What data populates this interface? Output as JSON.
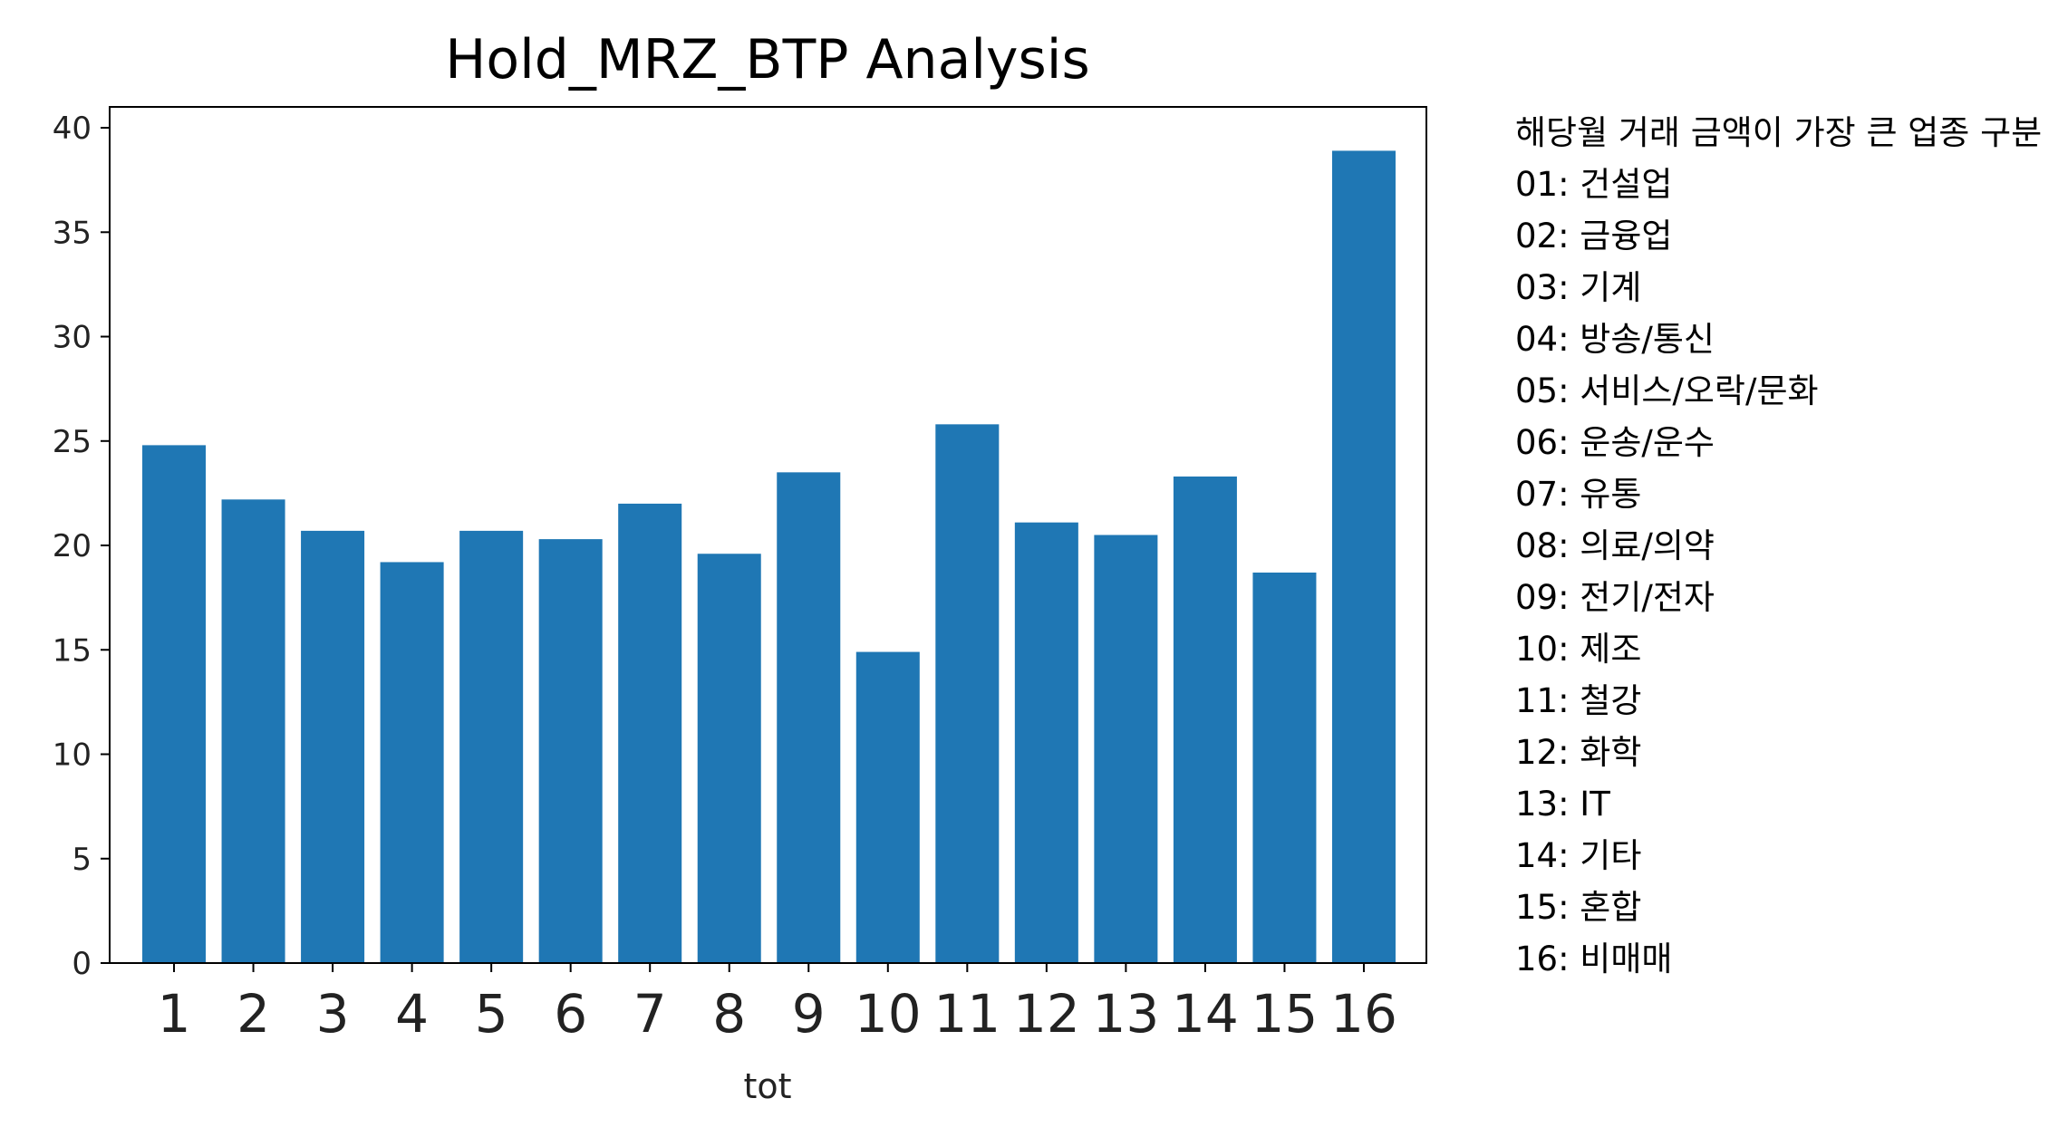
{
  "chart_data": {
    "type": "bar",
    "title": "Hold_MRZ_BTP Analysis",
    "xlabel": "tot",
    "ylabel": "",
    "categories": [
      "1",
      "2",
      "3",
      "4",
      "5",
      "6",
      "7",
      "8",
      "9",
      "10",
      "11",
      "12",
      "13",
      "14",
      "15",
      "16"
    ],
    "values": [
      24.8,
      22.2,
      20.7,
      19.2,
      20.7,
      20.3,
      22.0,
      19.6,
      23.5,
      14.9,
      25.8,
      21.1,
      20.5,
      23.3,
      18.7,
      38.9
    ],
    "ylim": [
      0,
      41
    ],
    "yticks": [
      0,
      5,
      10,
      15,
      20,
      25,
      30,
      35,
      40
    ],
    "grid": false,
    "bar_color": "#1f77b4",
    "axis_color": "#000000"
  },
  "legend": {
    "title": "해당월 거래 금액이 가장 큰 업종 구분",
    "items": [
      "01: 건설업",
      "02: 금융업",
      "03: 기계",
      "04: 방송/통신",
      "05: 서비스/오락/문화",
      "06: 운송/운수",
      "07: 유통",
      "08: 의료/의약",
      "09: 전기/전자",
      "10: 제조",
      "11: 철강",
      "12: 화학",
      "13: IT",
      "14: 기타",
      "15: 혼합",
      "16: 비매매"
    ]
  }
}
